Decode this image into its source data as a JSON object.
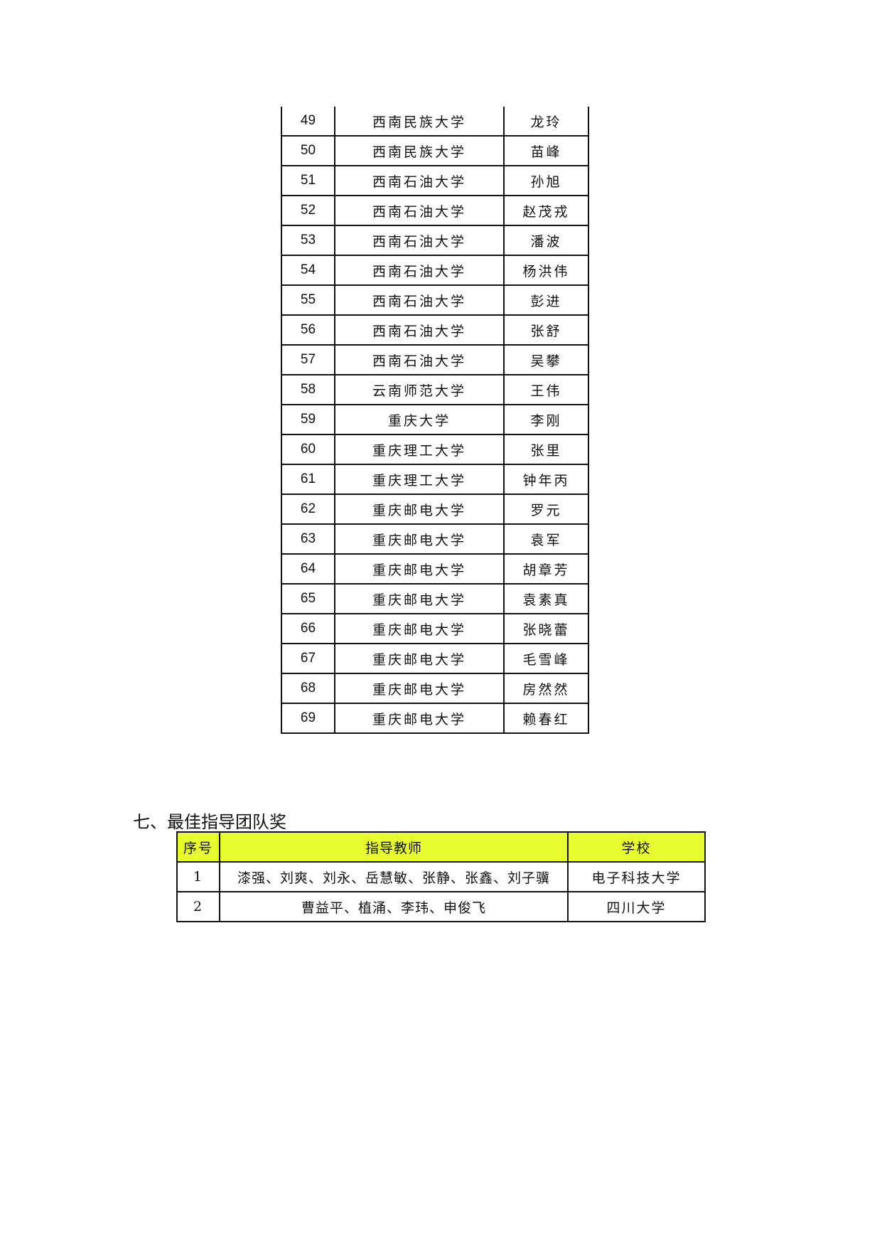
{
  "table1": {
    "rows": [
      [
        "49",
        "西南民族大学",
        "龙玲"
      ],
      [
        "50",
        "西南民族大学",
        "苗峰"
      ],
      [
        "51",
        "西南石油大学",
        "孙旭"
      ],
      [
        "52",
        "西南石油大学",
        "赵茂戎"
      ],
      [
        "53",
        "西南石油大学",
        "潘波"
      ],
      [
        "54",
        "西南石油大学",
        "杨洪伟"
      ],
      [
        "55",
        "西南石油大学",
        "彭进"
      ],
      [
        "56",
        "西南石油大学",
        "张舒"
      ],
      [
        "57",
        "西南石油大学",
        "吴攀"
      ],
      [
        "58",
        "云南师范大学",
        "王伟"
      ],
      [
        "59",
        "重庆大学",
        "李刚"
      ],
      [
        "60",
        "重庆理工大学",
        "张里"
      ],
      [
        "61",
        "重庆理工大学",
        "钟年丙"
      ],
      [
        "62",
        "重庆邮电大学",
        "罗元"
      ],
      [
        "63",
        "重庆邮电大学",
        "袁军"
      ],
      [
        "64",
        "重庆邮电大学",
        "胡章芳"
      ],
      [
        "65",
        "重庆邮电大学",
        "袁素真"
      ],
      [
        "66",
        "重庆邮电大学",
        "张晓蕾"
      ],
      [
        "67",
        "重庆邮电大学",
        "毛雪峰"
      ],
      [
        "68",
        "重庆邮电大学",
        "房然然"
      ],
      [
        "69",
        "重庆邮电大学",
        "赖春红"
      ]
    ]
  },
  "section7": {
    "heading": "七、最佳指导团队奖",
    "header_color": "#e6fc2e",
    "headers": [
      "序号",
      "指导教师",
      "学校"
    ],
    "rows": [
      [
        "1",
        "漆强、刘爽、刘永、岳慧敏、张静、张鑫、刘子骥",
        "电子科技大学"
      ],
      [
        "2",
        "曹益平、植涌、李玮、申俊飞",
        "四川大学"
      ]
    ]
  }
}
